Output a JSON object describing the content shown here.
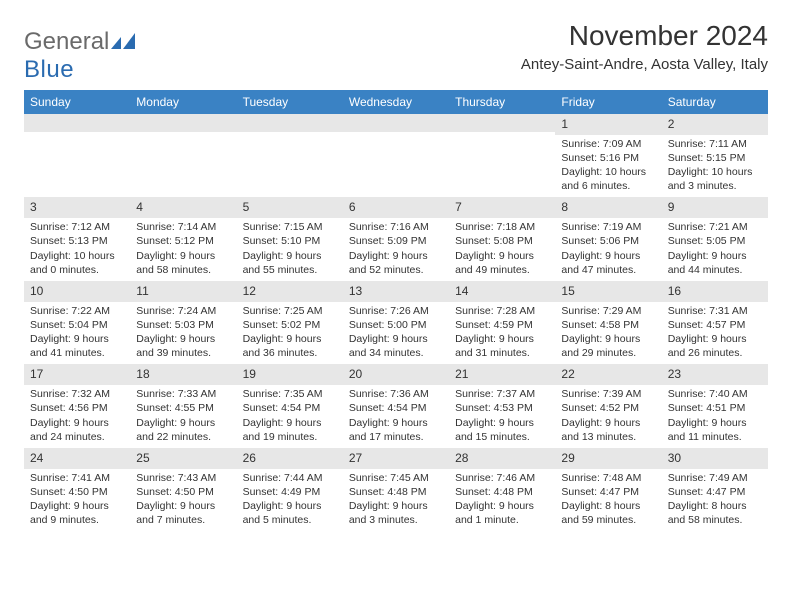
{
  "logo": {
    "main": "General",
    "sub": "Blue"
  },
  "title": "November 2024",
  "location": "Antey-Saint-Andre, Aosta Valley, Italy",
  "header_bg": "#3a82c4",
  "daynum_bg": "#e7e7e7",
  "text_color": "#333333",
  "logo_main_color": "#6a6a6a",
  "logo_sub_color": "#2a6bb0",
  "weekdays": [
    "Sunday",
    "Monday",
    "Tuesday",
    "Wednesday",
    "Thursday",
    "Friday",
    "Saturday"
  ],
  "weeks": [
    [
      {
        "n": "",
        "sr": "",
        "ss": "",
        "dl": ""
      },
      {
        "n": "",
        "sr": "",
        "ss": "",
        "dl": ""
      },
      {
        "n": "",
        "sr": "",
        "ss": "",
        "dl": ""
      },
      {
        "n": "",
        "sr": "",
        "ss": "",
        "dl": ""
      },
      {
        "n": "",
        "sr": "",
        "ss": "",
        "dl": ""
      },
      {
        "n": "1",
        "sr": "Sunrise: 7:09 AM",
        "ss": "Sunset: 5:16 PM",
        "dl": "Daylight: 10 hours and 6 minutes."
      },
      {
        "n": "2",
        "sr": "Sunrise: 7:11 AM",
        "ss": "Sunset: 5:15 PM",
        "dl": "Daylight: 10 hours and 3 minutes."
      }
    ],
    [
      {
        "n": "3",
        "sr": "Sunrise: 7:12 AM",
        "ss": "Sunset: 5:13 PM",
        "dl": "Daylight: 10 hours and 0 minutes."
      },
      {
        "n": "4",
        "sr": "Sunrise: 7:14 AM",
        "ss": "Sunset: 5:12 PM",
        "dl": "Daylight: 9 hours and 58 minutes."
      },
      {
        "n": "5",
        "sr": "Sunrise: 7:15 AM",
        "ss": "Sunset: 5:10 PM",
        "dl": "Daylight: 9 hours and 55 minutes."
      },
      {
        "n": "6",
        "sr": "Sunrise: 7:16 AM",
        "ss": "Sunset: 5:09 PM",
        "dl": "Daylight: 9 hours and 52 minutes."
      },
      {
        "n": "7",
        "sr": "Sunrise: 7:18 AM",
        "ss": "Sunset: 5:08 PM",
        "dl": "Daylight: 9 hours and 49 minutes."
      },
      {
        "n": "8",
        "sr": "Sunrise: 7:19 AM",
        "ss": "Sunset: 5:06 PM",
        "dl": "Daylight: 9 hours and 47 minutes."
      },
      {
        "n": "9",
        "sr": "Sunrise: 7:21 AM",
        "ss": "Sunset: 5:05 PM",
        "dl": "Daylight: 9 hours and 44 minutes."
      }
    ],
    [
      {
        "n": "10",
        "sr": "Sunrise: 7:22 AM",
        "ss": "Sunset: 5:04 PM",
        "dl": "Daylight: 9 hours and 41 minutes."
      },
      {
        "n": "11",
        "sr": "Sunrise: 7:24 AM",
        "ss": "Sunset: 5:03 PM",
        "dl": "Daylight: 9 hours and 39 minutes."
      },
      {
        "n": "12",
        "sr": "Sunrise: 7:25 AM",
        "ss": "Sunset: 5:02 PM",
        "dl": "Daylight: 9 hours and 36 minutes."
      },
      {
        "n": "13",
        "sr": "Sunrise: 7:26 AM",
        "ss": "Sunset: 5:00 PM",
        "dl": "Daylight: 9 hours and 34 minutes."
      },
      {
        "n": "14",
        "sr": "Sunrise: 7:28 AM",
        "ss": "Sunset: 4:59 PM",
        "dl": "Daylight: 9 hours and 31 minutes."
      },
      {
        "n": "15",
        "sr": "Sunrise: 7:29 AM",
        "ss": "Sunset: 4:58 PM",
        "dl": "Daylight: 9 hours and 29 minutes."
      },
      {
        "n": "16",
        "sr": "Sunrise: 7:31 AM",
        "ss": "Sunset: 4:57 PM",
        "dl": "Daylight: 9 hours and 26 minutes."
      }
    ],
    [
      {
        "n": "17",
        "sr": "Sunrise: 7:32 AM",
        "ss": "Sunset: 4:56 PM",
        "dl": "Daylight: 9 hours and 24 minutes."
      },
      {
        "n": "18",
        "sr": "Sunrise: 7:33 AM",
        "ss": "Sunset: 4:55 PM",
        "dl": "Daylight: 9 hours and 22 minutes."
      },
      {
        "n": "19",
        "sr": "Sunrise: 7:35 AM",
        "ss": "Sunset: 4:54 PM",
        "dl": "Daylight: 9 hours and 19 minutes."
      },
      {
        "n": "20",
        "sr": "Sunrise: 7:36 AM",
        "ss": "Sunset: 4:54 PM",
        "dl": "Daylight: 9 hours and 17 minutes."
      },
      {
        "n": "21",
        "sr": "Sunrise: 7:37 AM",
        "ss": "Sunset: 4:53 PM",
        "dl": "Daylight: 9 hours and 15 minutes."
      },
      {
        "n": "22",
        "sr": "Sunrise: 7:39 AM",
        "ss": "Sunset: 4:52 PM",
        "dl": "Daylight: 9 hours and 13 minutes."
      },
      {
        "n": "23",
        "sr": "Sunrise: 7:40 AM",
        "ss": "Sunset: 4:51 PM",
        "dl": "Daylight: 9 hours and 11 minutes."
      }
    ],
    [
      {
        "n": "24",
        "sr": "Sunrise: 7:41 AM",
        "ss": "Sunset: 4:50 PM",
        "dl": "Daylight: 9 hours and 9 minutes."
      },
      {
        "n": "25",
        "sr": "Sunrise: 7:43 AM",
        "ss": "Sunset: 4:50 PM",
        "dl": "Daylight: 9 hours and 7 minutes."
      },
      {
        "n": "26",
        "sr": "Sunrise: 7:44 AM",
        "ss": "Sunset: 4:49 PM",
        "dl": "Daylight: 9 hours and 5 minutes."
      },
      {
        "n": "27",
        "sr": "Sunrise: 7:45 AM",
        "ss": "Sunset: 4:48 PM",
        "dl": "Daylight: 9 hours and 3 minutes."
      },
      {
        "n": "28",
        "sr": "Sunrise: 7:46 AM",
        "ss": "Sunset: 4:48 PM",
        "dl": "Daylight: 9 hours and 1 minute."
      },
      {
        "n": "29",
        "sr": "Sunrise: 7:48 AM",
        "ss": "Sunset: 4:47 PM",
        "dl": "Daylight: 8 hours and 59 minutes."
      },
      {
        "n": "30",
        "sr": "Sunrise: 7:49 AM",
        "ss": "Sunset: 4:47 PM",
        "dl": "Daylight: 8 hours and 58 minutes."
      }
    ]
  ]
}
